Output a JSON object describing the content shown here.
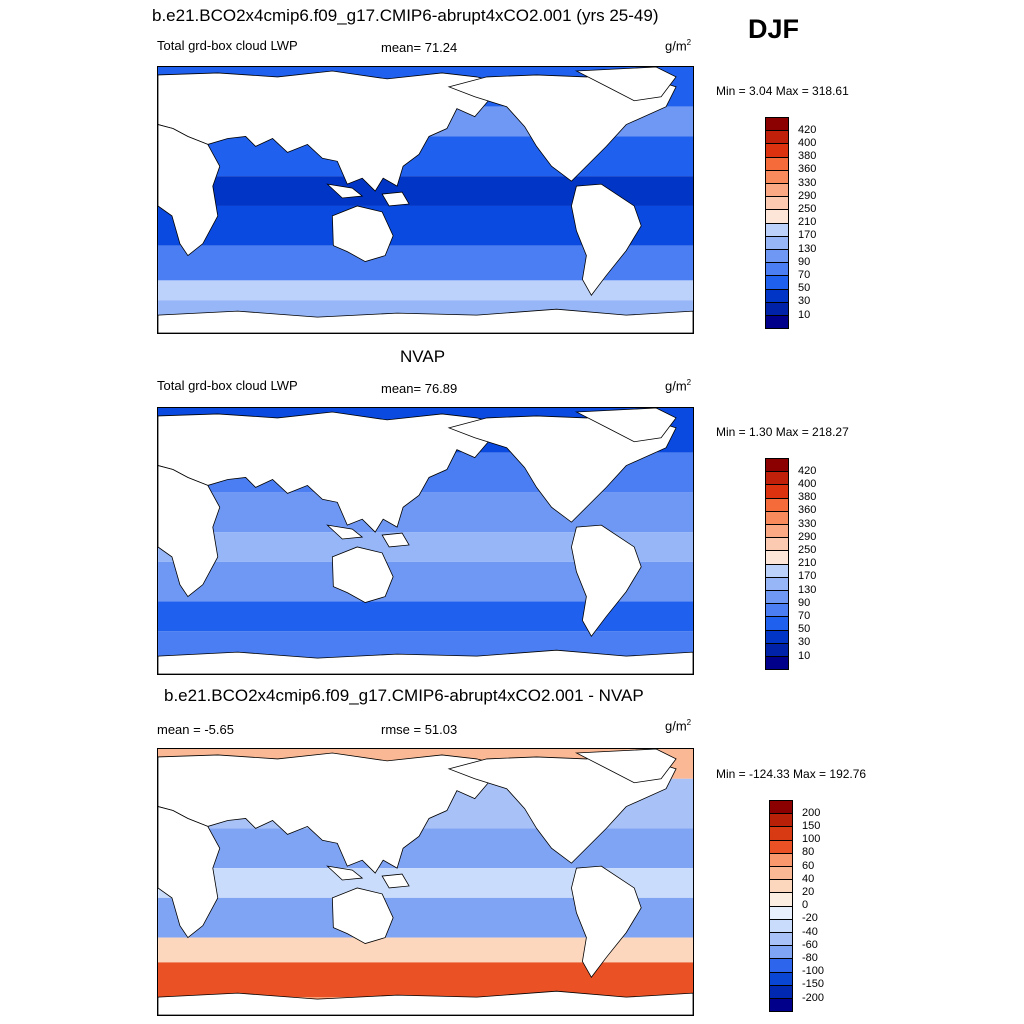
{
  "season": "DJF",
  "colors": {
    "lwp_scale": [
      "#00008b",
      "#0022a8",
      "#0035c6",
      "#0a4ae0",
      "#2060ee",
      "#4a7ef2",
      "#6e98f4",
      "#96b6f8",
      "#bcd2fb",
      "#dde9fd",
      "#fde6d8",
      "#fccab0",
      "#fba884",
      "#f98a5c",
      "#f56b3a",
      "#ee4b1e",
      "#dc3210",
      "#c0200a",
      "#8b0000"
    ],
    "diff_scale": [
      "#00008b",
      "#0028b0",
      "#0a46d4",
      "#2d66ec",
      "#5884f0",
      "#80a4f4",
      "#a8c2f8",
      "#cadcfb",
      "#e8f0fe",
      "#fdeee2",
      "#fcd6bd",
      "#fab894",
      "#f8986c",
      "#f47646",
      "#ea5226",
      "#d83a14",
      "#b82008",
      "#8b0000"
    ],
    "land": "#ffffff",
    "coast": "#000000"
  },
  "panels": [
    {
      "title": "b.e21.BCO2x4cmip6.f09_g17.CMIP6-abrupt4xCO2.001 (yrs 25-49)",
      "left_text": "Total grd-box cloud LWP",
      "mid_text": "mean=  71.24",
      "unit_base": "g/m",
      "unit_exp": "2",
      "minmax": "Min =   3.04 Max = 318.61",
      "map_style": "model",
      "colorbar": {
        "labels": [
          "420",
          "400",
          "380",
          "360",
          "330",
          "290",
          "250",
          "210",
          "170",
          "130",
          "90",
          "70",
          "50",
          "30",
          "10"
        ]
      }
    },
    {
      "title": "NVAP",
      "left_text": "Total grd-box cloud LWP",
      "mid_text": "mean=  76.89",
      "unit_base": "g/m",
      "unit_exp": "2",
      "minmax": "Min =   1.30 Max = 218.27",
      "map_style": "obs",
      "colorbar": {
        "labels": [
          "420",
          "400",
          "380",
          "360",
          "330",
          "290",
          "250",
          "210",
          "170",
          "130",
          "90",
          "70",
          "50",
          "30",
          "10"
        ]
      }
    },
    {
      "title": "b.e21.BCO2x4cmip6.f09_g17.CMIP6-abrupt4xCO2.001 - NVAP",
      "left_text": "mean =  -5.65",
      "mid_text": "rmse =  51.03",
      "unit_base": "g/m",
      "unit_exp": "2",
      "minmax": "Min = -124.33 Max = 192.76",
      "map_style": "diff",
      "colorbar": {
        "labels": [
          "200",
          "150",
          "100",
          "80",
          "60",
          "40",
          "20",
          "0",
          "-20",
          "-40",
          "-60",
          "-80",
          "-100",
          "-150",
          "-200"
        ]
      }
    }
  ]
}
